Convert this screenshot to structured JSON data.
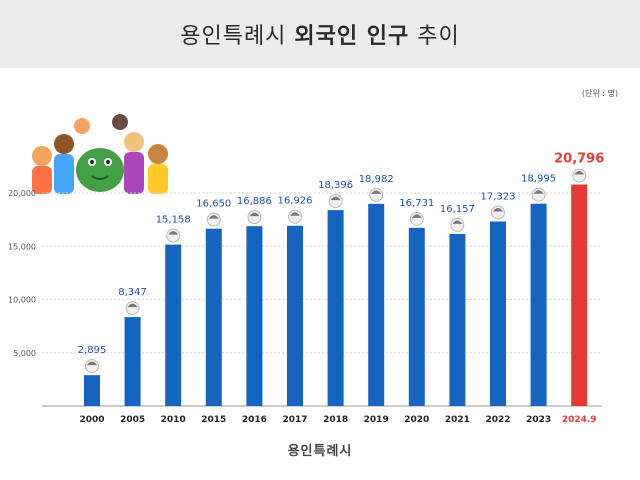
{
  "title": {
    "part1": "용인특례시",
    "bold": "외국인 인구",
    "part2": "추이"
  },
  "unit_label": "(단위 : 명)",
  "logo_text": "용인특례시",
  "colors": {
    "bar": "#1565c0",
    "highlight": "#e53935",
    "grid": "#d6d6d6",
    "label": "#1d4f9a"
  },
  "chart_data": {
    "type": "bar",
    "categories": [
      "2000",
      "2005",
      "2010",
      "2015",
      "2016",
      "2017",
      "2018",
      "2019",
      "2020",
      "2021",
      "2022",
      "2023",
      "2024.9"
    ],
    "values": [
      2895,
      8347,
      15158,
      16650,
      16886,
      16926,
      18396,
      18982,
      16731,
      16157,
      17323,
      18995,
      20796
    ],
    "value_labels": [
      "2,895",
      "8,347",
      "15,158",
      "16,650",
      "16,886",
      "16,926",
      "18,396",
      "18,982",
      "16,731",
      "16,157",
      "17,323",
      "18,995",
      "20,796"
    ],
    "highlight_index": 12,
    "yticks": [
      5000,
      10000,
      15000,
      20000
    ],
    "ytick_labels": [
      "5,000",
      "10,000",
      "15,000",
      "20,000"
    ],
    "ylim": [
      0,
      22000
    ],
    "grid": true
  }
}
